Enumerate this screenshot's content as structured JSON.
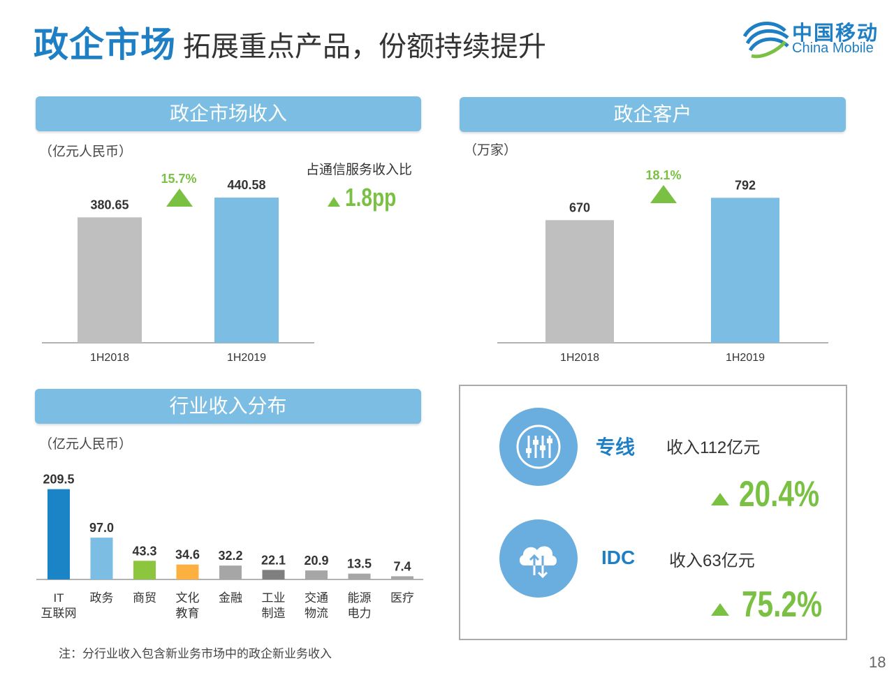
{
  "header": {
    "title": "政企市场",
    "subtitle": "拓展重点产品，份额持续提升",
    "logo_cn": "中国移动",
    "logo_en": "China Mobile"
  },
  "revenue_panel": {
    "band_title": "政企市场收入",
    "unit": "（亿元人民币）",
    "growth": "15.7%",
    "share_label": "占通信服务收入比",
    "share_value": "1.8pp"
  },
  "customer_panel": {
    "band_title": "政企客户",
    "unit": "（万家）",
    "growth": "18.1%"
  },
  "industry_panel": {
    "band_title": "行业收入分布",
    "unit": "（亿元人民币）"
  },
  "services": [
    {
      "name": "专线",
      "desc": "收入112亿元",
      "growth": "20.4%",
      "icon": "sliders-icon"
    },
    {
      "name": "IDC",
      "desc": "收入63亿元",
      "growth": "75.2%",
      "icon": "cloud-transfer-icon"
    }
  ],
  "note": "注：分行业收入包含新业务市场中的政企新业务收入",
  "page_number": "18",
  "colors": {
    "brand_blue": "#1e7fc4",
    "band_blue": "#7bbde3",
    "bar_gray": "#bfbfbf",
    "bar_blue": "#7bbde3",
    "accent_green": "#7ac143"
  },
  "chart_data": [
    {
      "type": "bar",
      "categories": [
        "1H2018",
        "1H2019"
      ],
      "values": [
        380.65,
        440.58
      ],
      "labels": [
        "380.65",
        "440.58"
      ],
      "colors": [
        "#bfbfbf",
        "#7bbde3"
      ],
      "ylim": [
        0,
        500
      ]
    },
    {
      "type": "bar",
      "categories": [
        "1H2018",
        "1H2019"
      ],
      "values": [
        670,
        792
      ],
      "labels": [
        "670",
        "792"
      ],
      "colors": [
        "#bfbfbf",
        "#7bbde3"
      ],
      "ylim": [
        0,
        900
      ]
    },
    {
      "type": "bar",
      "categories": [
        [
          "IT",
          "互联网"
        ],
        [
          "政务"
        ],
        [
          "商贸"
        ],
        [
          "文化",
          "教育"
        ],
        [
          "金融"
        ],
        [
          "工业",
          "制造"
        ],
        [
          "交通",
          "物流"
        ],
        [
          "能源",
          "电力"
        ],
        [
          "医疗"
        ]
      ],
      "values": [
        209.5,
        97.0,
        43.3,
        34.6,
        32.2,
        22.1,
        20.9,
        13.5,
        7.4
      ],
      "labels": [
        "209.5",
        "97.0",
        "43.3",
        "34.6",
        "32.2",
        "22.1",
        "20.9",
        "13.5",
        "7.4"
      ],
      "colors": [
        "#1a84c7",
        "#7bbde3",
        "#8cc63f",
        "#fbb040",
        "#a6a6a6",
        "#7f7f7f",
        "#a6a6a6",
        "#a6a6a6",
        "#a6a6a6"
      ],
      "ylim": [
        0,
        230
      ]
    }
  ]
}
